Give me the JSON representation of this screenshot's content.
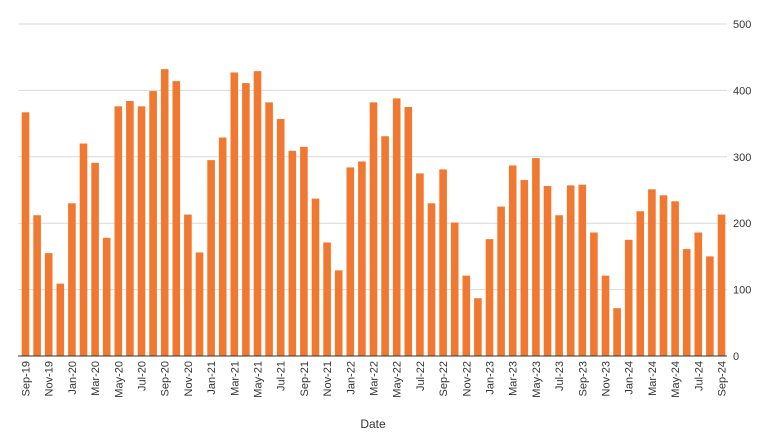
{
  "chart_data": {
    "type": "bar",
    "title": "",
    "xlabel": "Date",
    "ylabel": "",
    "ylim": [
      0,
      500
    ],
    "yticks": [
      0,
      100,
      200,
      300,
      400,
      500
    ],
    "y_axis_side": "right",
    "grid": "horizontal",
    "bar_color": "#f07830",
    "categories": [
      "Sep-19",
      "Oct-19",
      "Nov-19",
      "Dec-19",
      "Jan-20",
      "Feb-20",
      "Mar-20",
      "Apr-20",
      "May-20",
      "Jun-20",
      "Jul-20",
      "Aug-20",
      "Sep-20",
      "Oct-20",
      "Nov-20",
      "Dec-20",
      "Jan-21",
      "Feb-21",
      "Mar-21",
      "Apr-21",
      "May-21",
      "Jun-21",
      "Jul-21",
      "Aug-21",
      "Sep-21",
      "Oct-21",
      "Nov-21",
      "Dec-21",
      "Jan-22",
      "Feb-22",
      "Mar-22",
      "Apr-22",
      "May-22",
      "Jun-22",
      "Jul-22",
      "Aug-22",
      "Sep-22",
      "Oct-22",
      "Nov-22",
      "Dec-22",
      "Jan-23",
      "Feb-23",
      "Mar-23",
      "Apr-23",
      "May-23",
      "Jun-23",
      "Jul-23",
      "Aug-23",
      "Sep-23",
      "Oct-23",
      "Nov-23",
      "Dec-23",
      "Jan-24",
      "Feb-24",
      "Mar-24",
      "Apr-24",
      "May-24",
      "Jun-24",
      "Jul-24",
      "Aug-24",
      "Sep-24"
    ],
    "tick_labels": [
      "Sep-19",
      "Nov-19",
      "Jan-20",
      "Mar-20",
      "May-20",
      "Jul-20",
      "Sep-20",
      "Nov-20",
      "Jan-21",
      "Mar-21",
      "May-21",
      "Jul-21",
      "Sep-21",
      "Nov-21",
      "Jan-22",
      "Mar-22",
      "May-22",
      "Jul-22",
      "Sep-22",
      "Nov-22",
      "Jan-23",
      "Mar-23",
      "May-23",
      "Jul-23",
      "Sep-23",
      "Nov-23",
      "Jan-24",
      "Mar-24",
      "May-24",
      "Jul-24",
      "Sep-24"
    ],
    "values": [
      367,
      212,
      155,
      109,
      230,
      320,
      291,
      178,
      376,
      384,
      376,
      399,
      432,
      414,
      213,
      156,
      295,
      329,
      427,
      411,
      429,
      382,
      357,
      309,
      315,
      237,
      171,
      129,
      284,
      293,
      382,
      331,
      388,
      375,
      275,
      230,
      281,
      201,
      121,
      87,
      176,
      225,
      287,
      265,
      298,
      256,
      212,
      257,
      258,
      186,
      121,
      72,
      175,
      218,
      251,
      242,
      233,
      161,
      186,
      150,
      213
    ]
  }
}
